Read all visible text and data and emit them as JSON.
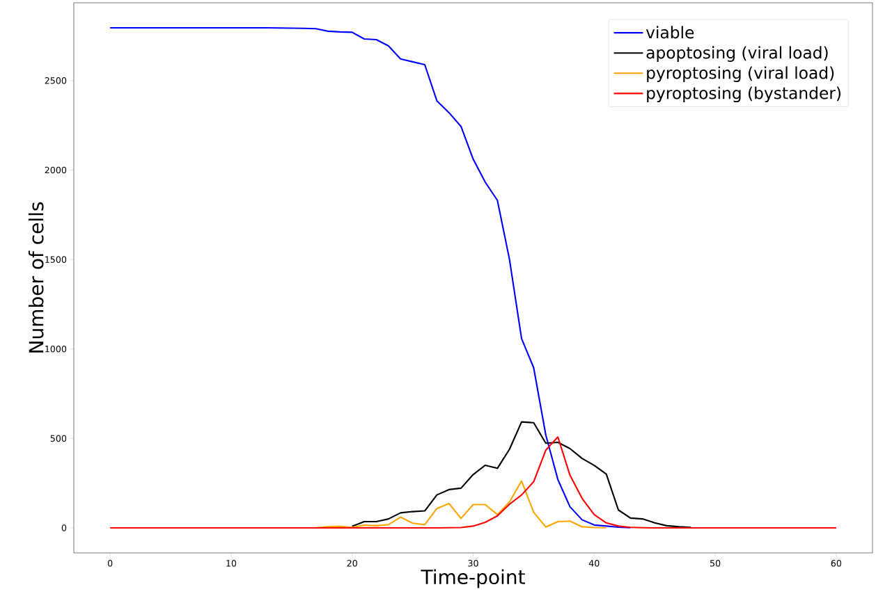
{
  "chart_data": {
    "type": "line",
    "xlabel": "Time-point",
    "ylabel": "Number of cells",
    "x": [
      0,
      1,
      2,
      3,
      4,
      5,
      6,
      7,
      8,
      9,
      10,
      11,
      12,
      13,
      14,
      15,
      16,
      17,
      18,
      19,
      20,
      21,
      22,
      23,
      24,
      25,
      26,
      27,
      28,
      29,
      30,
      31,
      32,
      33,
      34,
      35,
      36,
      37,
      38,
      39,
      40,
      41,
      42,
      43,
      44,
      45,
      46,
      47,
      48,
      49,
      50,
      51,
      52,
      53,
      54,
      55,
      56,
      57,
      58,
      59,
      60
    ],
    "series": [
      {
        "name": "viable",
        "color": "#0000ff",
        "values": [
          2795,
          2795,
          2795,
          2795,
          2795,
          2795,
          2795,
          2795,
          2795,
          2795,
          2795,
          2795,
          2795,
          2795,
          2794,
          2793,
          2792,
          2790,
          2776,
          2772,
          2770,
          2733,
          2729,
          2694,
          2621,
          2605,
          2589,
          2387,
          2321,
          2243,
          2061,
          1932,
          1831,
          1501,
          1058,
          895,
          520,
          270,
          118,
          45,
          16,
          10,
          4,
          1,
          null,
          null,
          null,
          null,
          null,
          null,
          null,
          null,
          null,
          null,
          null,
          null,
          null,
          null,
          null,
          null,
          null
        ]
      },
      {
        "name": "apoptosing (viral load)",
        "color": "#000000",
        "values": [
          null,
          null,
          null,
          null,
          null,
          null,
          null,
          null,
          null,
          null,
          null,
          null,
          null,
          null,
          null,
          null,
          null,
          null,
          null,
          null,
          9,
          35,
          35,
          50,
          84,
          91,
          95,
          184,
          214,
          222,
          298,
          350,
          333,
          439,
          592,
          588,
          473,
          478,
          443,
          388,
          349,
          301,
          100,
          55,
          50,
          28,
          12,
          6,
          3,
          null,
          null,
          null,
          null,
          null,
          null,
          null,
          null,
          null,
          null,
          null,
          null
        ]
      },
      {
        "name": "pyroptosing (viral load)",
        "color": "#ffa500",
        "values": [
          null,
          null,
          null,
          null,
          null,
          null,
          null,
          null,
          null,
          null,
          null,
          null,
          null,
          null,
          null,
          null,
          null,
          1,
          6,
          8,
          3,
          15,
          12,
          18,
          60,
          26,
          18,
          108,
          136,
          53,
          130,
          130,
          74,
          145,
          262,
          87,
          5,
          35,
          38,
          6,
          2,
          1,
          null,
          null,
          null,
          null,
          null,
          null,
          null,
          null,
          null,
          null,
          null,
          null,
          null,
          null,
          null,
          null,
          null,
          null,
          null
        ]
      },
      {
        "name": "pyroptosing (bystander)",
        "color": "#ff0000",
        "values": [
          0,
          0,
          0,
          0,
          0,
          0,
          0,
          0,
          0,
          0,
          0,
          0,
          0,
          0,
          0,
          0,
          0,
          0,
          0,
          0,
          0,
          0,
          0,
          0,
          0,
          0,
          0,
          0,
          1,
          2,
          10,
          31,
          67,
          132,
          184,
          258,
          434,
          508,
          294,
          165,
          74,
          28,
          10,
          3,
          1,
          0,
          0,
          0,
          0,
          0,
          0,
          0,
          0,
          0,
          0,
          0,
          0,
          0,
          0,
          0,
          0
        ]
      }
    ],
    "xlim": [
      -3,
      63
    ],
    "ylim": [
      -140,
      2935
    ],
    "xticks": [
      0,
      10,
      20,
      30,
      40,
      50,
      60
    ],
    "yticks": [
      0,
      500,
      1000,
      1500,
      2000,
      2500
    ],
    "legend": "top right",
    "grid": false
  }
}
